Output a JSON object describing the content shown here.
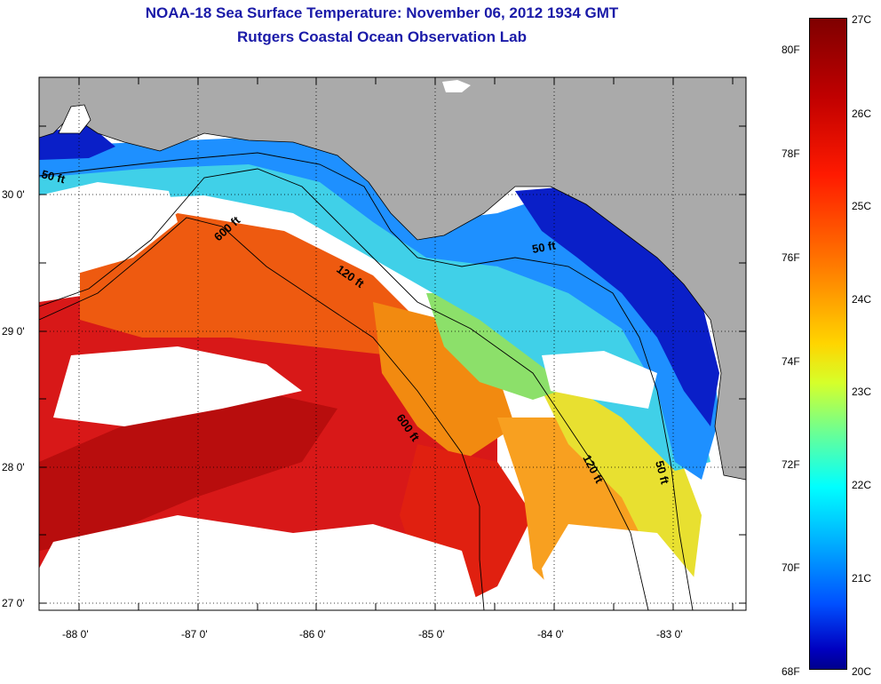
{
  "title": {
    "line1": "NOAA-18 Sea Surface Temperature:  November 06, 2012 1934 GMT",
    "line2": "Rutgers Coastal Ocean Observation Lab"
  },
  "map": {
    "lat_labels": [
      "30 0'",
      "29 0'",
      "28 0'",
      "27 0'"
    ],
    "lon_labels": [
      "-88 0'",
      "-87 0'",
      "-86 0'",
      "-85 0'",
      "-84 0'",
      "-83 0'"
    ],
    "contour_labels": {
      "c50a": "50 ft",
      "c50b": "50 ft",
      "c50c": "50 ft",
      "c120a": "120 ft",
      "c120b": "120 ft",
      "c600a": "600 ft",
      "c600b": "600 ft"
    },
    "colors": {
      "land": "#aaaaaa",
      "cloud": "#ffffff"
    }
  },
  "colorbar": {
    "f_labels": [
      "80F",
      "78F",
      "76F",
      "74F",
      "72F",
      "70F",
      "68F"
    ],
    "c_labels": [
      "27C",
      "26C",
      "25C",
      "24C",
      "23C",
      "22C",
      "21C",
      "20C"
    ],
    "colors": [
      "#7f0000",
      "#ff1a00",
      "#ff7a00",
      "#ffd500",
      "#66ff99",
      "#00ffff",
      "#0050ff",
      "#00008c"
    ]
  }
}
